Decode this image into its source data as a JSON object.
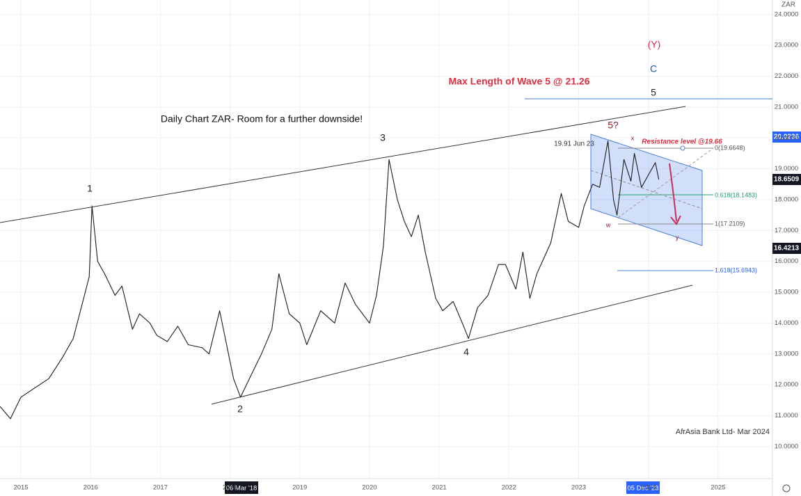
{
  "chart_data": {
    "type": "line",
    "symbol": "ZAR",
    "color": "#1a1a1a",
    "x": [
      2014.7,
      2014.85,
      2015.0,
      2015.2,
      2015.4,
      2015.6,
      2015.75,
      2015.9,
      2015.98,
      2016.02,
      2016.1,
      2016.2,
      2016.35,
      2016.45,
      2016.6,
      2016.7,
      2016.85,
      2016.95,
      2017.1,
      2017.25,
      2017.4,
      2017.6,
      2017.7,
      2017.85,
      2017.95,
      2018.05,
      2018.15,
      2018.3,
      2018.45,
      2018.6,
      2018.7,
      2018.85,
      2019.0,
      2019.1,
      2019.3,
      2019.5,
      2019.65,
      2019.8,
      2020.0,
      2020.1,
      2020.2,
      2020.28,
      2020.4,
      2020.5,
      2020.6,
      2020.7,
      2020.8,
      2020.95,
      2021.05,
      2021.2,
      2021.35,
      2021.42,
      2021.55,
      2021.7,
      2021.85,
      2021.95,
      2022.1,
      2022.2,
      2022.3,
      2022.4,
      2022.6,
      2022.75,
      2022.85,
      2023.0,
      2023.08,
      2023.2,
      2023.3,
      2023.42,
      2023.5,
      2023.55,
      2023.65,
      2023.75,
      2023.8,
      2023.9,
      2024.0,
      2024.1,
      2024.15
    ],
    "values": [
      11.3,
      10.9,
      11.6,
      11.9,
      12.2,
      12.9,
      13.5,
      14.8,
      15.5,
      17.8,
      16.0,
      15.6,
      14.9,
      15.2,
      13.8,
      14.3,
      14.0,
      13.6,
      13.4,
      13.9,
      13.3,
      13.2,
      13.0,
      14.4,
      13.3,
      12.2,
      11.6,
      12.3,
      13.0,
      13.8,
      15.6,
      14.3,
      14.0,
      13.3,
      14.4,
      14.0,
      15.3,
      14.6,
      14.0,
      14.9,
      16.5,
      19.3,
      18.0,
      17.3,
      16.8,
      17.5,
      16.3,
      14.8,
      14.4,
      14.7,
      13.9,
      13.5,
      14.5,
      14.9,
      15.9,
      15.9,
      15.1,
      16.3,
      14.8,
      15.6,
      16.6,
      18.2,
      17.3,
      17.1,
      17.8,
      18.5,
      18.4,
      19.9,
      18.0,
      17.5,
      19.3,
      18.6,
      19.5,
      18.4,
      18.8,
      19.2,
      18.65
    ],
    "xlim": [
      2014.7,
      2025.78
    ],
    "xticks": [
      2015,
      2016,
      2017,
      2018,
      2019,
      2020,
      2021,
      2022,
      2023,
      2024,
      2025
    ],
    "ylim": [
      8.96,
      24.47
    ],
    "yticks": [
      {
        "value": 10,
        "label": "10.0000"
      },
      {
        "value": 11,
        "label": "11.0000"
      },
      {
        "value": 12,
        "label": "12.0000"
      },
      {
        "value": 13,
        "label": "13.0000"
      },
      {
        "value": 14,
        "label": "14.0000"
      },
      {
        "value": 15,
        "label": "15.0000"
      },
      {
        "value": 16,
        "label": "16.0000"
      },
      {
        "value": 17,
        "label": "17.0000"
      },
      {
        "value": 18,
        "label": "18.0000"
      },
      {
        "value": 19,
        "label": "19.0000"
      },
      {
        "value": 20,
        "label": "20.0000"
      },
      {
        "value": 21,
        "label": "21.0000"
      },
      {
        "value": 22,
        "label": "22.0000"
      },
      {
        "value": 23,
        "label": "23.0000"
      },
      {
        "value": 24,
        "label": "24.0000"
      }
    ],
    "grid": true,
    "title": "Daily Chart ZAR-  Room for a further downside!",
    "max_wave_note": "Max Length of Wave 5 @ 21.26",
    "resistance_note": "Resistance level @19.66",
    "source": "AfrAsia Bank Ltd- Mar 2024",
    "wave_labels": [
      "1",
      "2",
      "3",
      "4",
      "5?",
      "5",
      "C",
      "(Y)",
      "x",
      "w",
      "y"
    ],
    "peak_note": "19.91 Jun 23",
    "fib_labels": [
      "0(19.6648)",
      "0.618(18.1483)",
      "1(17.2109)",
      "1.618(15.6943)"
    ],
    "price_boxes": [
      "20.0236",
      "18.6509",
      "16.4213"
    ],
    "date_boxes": [
      "06 Mar '18",
      "05 Dec '23"
    ]
  }
}
